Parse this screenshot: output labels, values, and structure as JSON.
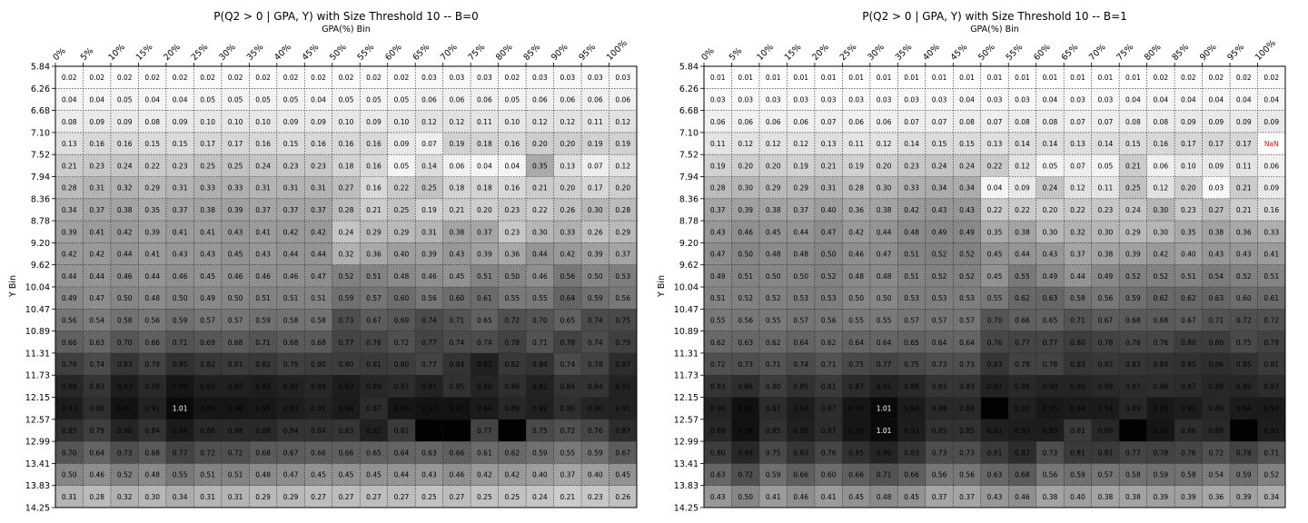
{
  "chart_data": [
    {
      "type": "heatmap",
      "title": "P(Q2 > 0 | GPA, Y) with Size Threshold 10 -- B=0",
      "xlabel": "GPA(%) Bin",
      "ylabel": "Y Bin",
      "x_tick_labels": [
        "0%",
        "5%",
        "10%",
        "15%",
        "20%",
        "25%",
        "30%",
        "35%",
        "40%",
        "45%",
        "50%",
        "55%",
        "60%",
        "65%",
        "70%",
        "75%",
        "80%",
        "85%",
        "90%",
        "95%",
        "100%"
      ],
      "y_tick_labels": [
        "5.84",
        "6.26",
        "6.68",
        "7.10",
        "7.52",
        "7.94",
        "8.36",
        "8.78",
        "9.20",
        "9.62",
        "10.04",
        "10.47",
        "10.89",
        "11.31",
        "11.73",
        "12.15",
        "12.57",
        "12.99",
        "13.41",
        "13.83",
        "14.25"
      ],
      "color_scale": "gray_reversed",
      "color_range": [
        0,
        1.05
      ],
      "grid": true,
      "values": [
        [
          0.02,
          0.02,
          0.02,
          0.02,
          0.02,
          0.02,
          0.02,
          0.02,
          0.02,
          0.02,
          0.02,
          0.02,
          0.02,
          0.03,
          0.03,
          0.03,
          0.02,
          0.03,
          0.03,
          0.03,
          0.03
        ],
        [
          0.04,
          0.04,
          0.05,
          0.04,
          0.04,
          0.05,
          0.05,
          0.05,
          0.05,
          0.04,
          0.05,
          0.05,
          0.05,
          0.06,
          0.06,
          0.06,
          0.05,
          0.06,
          0.06,
          0.06,
          0.06
        ],
        [
          0.08,
          0.09,
          0.09,
          0.08,
          0.09,
          0.1,
          0.1,
          0.1,
          0.09,
          0.09,
          0.1,
          0.09,
          0.1,
          0.12,
          0.12,
          0.11,
          0.1,
          0.12,
          0.12,
          0.11,
          0.12
        ],
        [
          0.13,
          0.16,
          0.16,
          0.15,
          0.15,
          0.17,
          0.17,
          0.16,
          0.15,
          0.16,
          0.16,
          0.16,
          0.09,
          0.07,
          0.19,
          0.18,
          0.16,
          0.2,
          0.2,
          0.19,
          0.19
        ],
        [
          0.21,
          0.23,
          0.24,
          0.22,
          0.23,
          0.25,
          0.25,
          0.24,
          0.23,
          0.23,
          0.18,
          0.16,
          0.05,
          0.14,
          0.06,
          0.04,
          0.04,
          0.35,
          0.13,
          0.07,
          0.12
        ],
        [
          0.28,
          0.31,
          0.32,
          0.29,
          0.31,
          0.33,
          0.33,
          0.31,
          0.31,
          0.31,
          0.27,
          0.16,
          0.22,
          0.25,
          0.18,
          0.18,
          0.16,
          0.21,
          0.2,
          0.17,
          0.2
        ],
        [
          0.34,
          0.37,
          0.38,
          0.35,
          0.37,
          0.38,
          0.39,
          0.37,
          0.37,
          0.37,
          0.28,
          0.21,
          0.25,
          0.19,
          0.21,
          0.2,
          0.23,
          0.22,
          0.26,
          0.3,
          0.28
        ],
        [
          0.39,
          0.41,
          0.42,
          0.39,
          0.41,
          0.41,
          0.43,
          0.41,
          0.42,
          0.42,
          0.24,
          0.29,
          0.29,
          0.31,
          0.38,
          0.37,
          0.23,
          0.3,
          0.33,
          0.26,
          0.29
        ],
        [
          0.42,
          0.42,
          0.44,
          0.41,
          0.43,
          0.43,
          0.45,
          0.43,
          0.44,
          0.44,
          0.32,
          0.36,
          0.4,
          0.39,
          0.43,
          0.39,
          0.36,
          0.44,
          0.42,
          0.39,
          0.37
        ],
        [
          0.44,
          0.44,
          0.46,
          0.44,
          0.46,
          0.45,
          0.46,
          0.46,
          0.46,
          0.47,
          0.52,
          0.51,
          0.48,
          0.46,
          0.45,
          0.51,
          0.5,
          0.46,
          0.56,
          0.5,
          0.53
        ],
        [
          0.49,
          0.47,
          0.5,
          0.48,
          0.5,
          0.49,
          0.5,
          0.51,
          0.51,
          0.51,
          0.59,
          0.57,
          0.6,
          0.56,
          0.6,
          0.61,
          0.55,
          0.55,
          0.64,
          0.59,
          0.56
        ],
        [
          0.56,
          0.54,
          0.58,
          0.56,
          0.59,
          0.57,
          0.57,
          0.59,
          0.58,
          0.58,
          0.73,
          0.67,
          0.69,
          0.74,
          0.71,
          0.65,
          0.72,
          0.7,
          0.65,
          0.74,
          0.75
        ],
        [
          0.66,
          0.63,
          0.7,
          0.66,
          0.71,
          0.69,
          0.68,
          0.71,
          0.68,
          0.68,
          0.77,
          0.76,
          0.72,
          0.77,
          0.74,
          0.74,
          0.78,
          0.71,
          0.78,
          0.74,
          0.79
        ],
        [
          0.79,
          0.74,
          0.83,
          0.78,
          0.85,
          0.82,
          0.81,
          0.82,
          0.79,
          0.8,
          0.8,
          0.81,
          0.8,
          0.77,
          0.84,
          0.92,
          0.82,
          0.84,
          0.74,
          0.78,
          0.87
        ],
        [
          0.89,
          0.83,
          0.93,
          0.88,
          0.96,
          0.92,
          0.92,
          0.93,
          0.91,
          0.89,
          0.93,
          0.89,
          0.87,
          0.91,
          0.85,
          0.9,
          0.86,
          0.91,
          0.84,
          0.84,
          0.91
        ],
        [
          0.93,
          0.86,
          0.97,
          0.91,
          1.01,
          0.96,
          0.96,
          0.95,
          0.93,
          0.91,
          0.94,
          0.87,
          0.96,
          0.97,
          0.97,
          0.94,
          0.89,
          0.92,
          0.86,
          0.9,
          0.91
        ],
        [
          0.85,
          0.79,
          0.9,
          0.84,
          0.94,
          0.88,
          0.88,
          0.88,
          0.84,
          0.84,
          0.83,
          0.92,
          0.81,
          1.04,
          1.04,
          0.77,
          1.04,
          0.75,
          0.72,
          0.76,
          0.87
        ],
        [
          0.7,
          0.64,
          0.73,
          0.68,
          0.77,
          0.72,
          0.72,
          0.68,
          0.67,
          0.66,
          0.66,
          0.65,
          0.64,
          0.63,
          0.66,
          0.61,
          0.62,
          0.59,
          0.55,
          0.59,
          0.67
        ],
        [
          0.5,
          0.46,
          0.52,
          0.48,
          0.55,
          0.51,
          0.51,
          0.48,
          0.47,
          0.45,
          0.45,
          0.45,
          0.44,
          0.43,
          0.46,
          0.42,
          0.42,
          0.4,
          0.37,
          0.4,
          0.45
        ],
        [
          0.31,
          0.28,
          0.32,
          0.3,
          0.34,
          0.31,
          0.31,
          0.29,
          0.29,
          0.27,
          0.27,
          0.27,
          0.27,
          0.25,
          0.27,
          0.25,
          0.25,
          0.24,
          0.21,
          0.23,
          0.26
        ]
      ],
      "hidden_label_cells": [
        [
          16,
          13
        ],
        [
          16,
          14
        ],
        [
          16,
          16
        ]
      ]
    },
    {
      "type": "heatmap",
      "title": "P(Q2 > 0 | GPA, Y) with Size Threshold 10 -- B=1",
      "xlabel": "GPA(%) Bin",
      "ylabel": "Y Bin",
      "x_tick_labels": [
        "0%",
        "5%",
        "10%",
        "15%",
        "20%",
        "25%",
        "30%",
        "35%",
        "40%",
        "45%",
        "50%",
        "55%",
        "60%",
        "65%",
        "70%",
        "75%",
        "80%",
        "85%",
        "90%",
        "95%",
        "100%"
      ],
      "y_tick_labels": [
        "5.84",
        "6.26",
        "6.68",
        "7.10",
        "7.52",
        "7.94",
        "8.36",
        "8.78",
        "9.20",
        "9.62",
        "10.04",
        "10.47",
        "10.89",
        "11.31",
        "11.73",
        "12.15",
        "12.57",
        "12.99",
        "13.41",
        "13.83",
        "14.25"
      ],
      "color_scale": "gray_reversed",
      "color_range": [
        0,
        1.05
      ],
      "grid": true,
      "nan_label": "NaN",
      "nan_color": "#ff0000",
      "values": [
        [
          0.01,
          0.01,
          0.01,
          0.01,
          0.01,
          0.01,
          0.01,
          0.01,
          0.01,
          0.01,
          0.01,
          0.01,
          0.01,
          0.01,
          0.01,
          0.01,
          0.02,
          0.02,
          0.02,
          0.02,
          0.02
        ],
        [
          0.03,
          0.03,
          0.03,
          0.03,
          0.03,
          0.03,
          0.03,
          0.03,
          0.03,
          0.04,
          0.03,
          0.03,
          0.04,
          0.03,
          0.03,
          0.04,
          0.04,
          0.04,
          0.04,
          0.04,
          0.04
        ],
        [
          0.06,
          0.06,
          0.06,
          0.06,
          0.07,
          0.06,
          0.06,
          0.07,
          0.07,
          0.08,
          0.07,
          0.08,
          0.08,
          0.07,
          0.07,
          0.08,
          0.08,
          0.09,
          0.09,
          0.09,
          0.09
        ],
        [
          0.11,
          0.12,
          0.12,
          0.12,
          0.13,
          0.11,
          0.12,
          0.14,
          0.15,
          0.15,
          0.13,
          0.14,
          0.14,
          0.13,
          0.14,
          0.15,
          0.16,
          0.17,
          0.17,
          0.17,
          null
        ],
        [
          0.19,
          0.2,
          0.2,
          0.19,
          0.21,
          0.19,
          0.2,
          0.23,
          0.24,
          0.24,
          0.22,
          0.12,
          0.05,
          0.07,
          0.05,
          0.21,
          0.06,
          0.1,
          0.09,
          0.11,
          0.06
        ],
        [
          0.28,
          0.3,
          0.29,
          0.29,
          0.31,
          0.28,
          0.3,
          0.33,
          0.34,
          0.34,
          0.04,
          0.09,
          0.24,
          0.12,
          0.11,
          0.25,
          0.12,
          0.2,
          0.03,
          0.21,
          0.09
        ],
        [
          0.37,
          0.39,
          0.38,
          0.37,
          0.4,
          0.36,
          0.38,
          0.42,
          0.43,
          0.43,
          0.22,
          0.22,
          0.2,
          0.22,
          0.23,
          0.24,
          0.3,
          0.23,
          0.27,
          0.21,
          0.16
        ],
        [
          0.43,
          0.46,
          0.45,
          0.44,
          0.47,
          0.42,
          0.44,
          0.48,
          0.49,
          0.49,
          0.35,
          0.38,
          0.3,
          0.32,
          0.3,
          0.29,
          0.3,
          0.35,
          0.38,
          0.36,
          0.33
        ],
        [
          0.47,
          0.5,
          0.48,
          0.48,
          0.5,
          0.46,
          0.47,
          0.51,
          0.52,
          0.52,
          0.45,
          0.44,
          0.43,
          0.37,
          0.38,
          0.39,
          0.42,
          0.4,
          0.43,
          0.43,
          0.41
        ],
        [
          0.49,
          0.51,
          0.5,
          0.5,
          0.52,
          0.48,
          0.48,
          0.51,
          0.52,
          0.52,
          0.45,
          0.55,
          0.49,
          0.44,
          0.49,
          0.52,
          0.52,
          0.51,
          0.54,
          0.52,
          0.51
        ],
        [
          0.51,
          0.52,
          0.52,
          0.53,
          0.53,
          0.5,
          0.5,
          0.53,
          0.53,
          0.53,
          0.55,
          0.62,
          0.63,
          0.58,
          0.56,
          0.59,
          0.62,
          0.62,
          0.63,
          0.6,
          0.61
        ],
        [
          0.55,
          0.56,
          0.55,
          0.57,
          0.56,
          0.55,
          0.55,
          0.57,
          0.57,
          0.57,
          0.7,
          0.66,
          0.65,
          0.71,
          0.67,
          0.68,
          0.68,
          0.67,
          0.71,
          0.72,
          0.72
        ],
        [
          0.62,
          0.63,
          0.62,
          0.64,
          0.62,
          0.64,
          0.64,
          0.65,
          0.64,
          0.64,
          0.76,
          0.77,
          0.77,
          0.8,
          0.78,
          0.76,
          0.76,
          0.8,
          0.8,
          0.75,
          0.78
        ],
        [
          0.72,
          0.73,
          0.71,
          0.74,
          0.71,
          0.75,
          0.77,
          0.75,
          0.73,
          0.73,
          0.83,
          0.78,
          0.78,
          0.83,
          0.82,
          0.83,
          0.84,
          0.85,
          0.86,
          0.85,
          0.81
        ],
        [
          0.83,
          0.86,
          0.8,
          0.85,
          0.81,
          0.87,
          0.91,
          0.88,
          0.83,
          0.83,
          0.91,
          0.88,
          0.9,
          0.9,
          0.88,
          0.87,
          0.86,
          0.87,
          0.89,
          0.89,
          0.87
        ],
        [
          0.9,
          0.98,
          0.87,
          0.93,
          0.87,
          0.96,
          1.01,
          0.94,
          0.88,
          0.88,
          1.04,
          0.92,
          0.95,
          0.94,
          0.94,
          0.89,
          0.95,
          0.93,
          0.89,
          0.94,
          0.94
        ],
        [
          0.89,
          0.98,
          0.85,
          0.92,
          0.87,
          0.96,
          1.01,
          0.93,
          0.85,
          0.85,
          0.92,
          0.93,
          0.93,
          0.81,
          0.89,
          1.04,
          0.96,
          0.86,
          0.88,
          1.04,
          0.93
        ],
        [
          0.8,
          0.89,
          0.75,
          0.83,
          0.76,
          0.85,
          0.9,
          0.83,
          0.73,
          0.73,
          0.81,
          0.87,
          0.73,
          0.81,
          0.81,
          0.77,
          0.78,
          0.76,
          0.72,
          0.78,
          0.71
        ],
        [
          0.63,
          0.72,
          0.59,
          0.66,
          0.6,
          0.66,
          0.71,
          0.66,
          0.56,
          0.56,
          0.63,
          0.68,
          0.56,
          0.59,
          0.57,
          0.58,
          0.59,
          0.58,
          0.54,
          0.59,
          0.52
        ],
        [
          0.43,
          0.5,
          0.41,
          0.46,
          0.41,
          0.45,
          0.48,
          0.45,
          0.37,
          0.37,
          0.43,
          0.46,
          0.38,
          0.4,
          0.38,
          0.38,
          0.39,
          0.39,
          0.36,
          0.39,
          0.34
        ]
      ],
      "hidden_label_cells": [
        [
          15,
          10
        ],
        [
          16,
          15
        ],
        [
          16,
          19
        ]
      ]
    }
  ]
}
